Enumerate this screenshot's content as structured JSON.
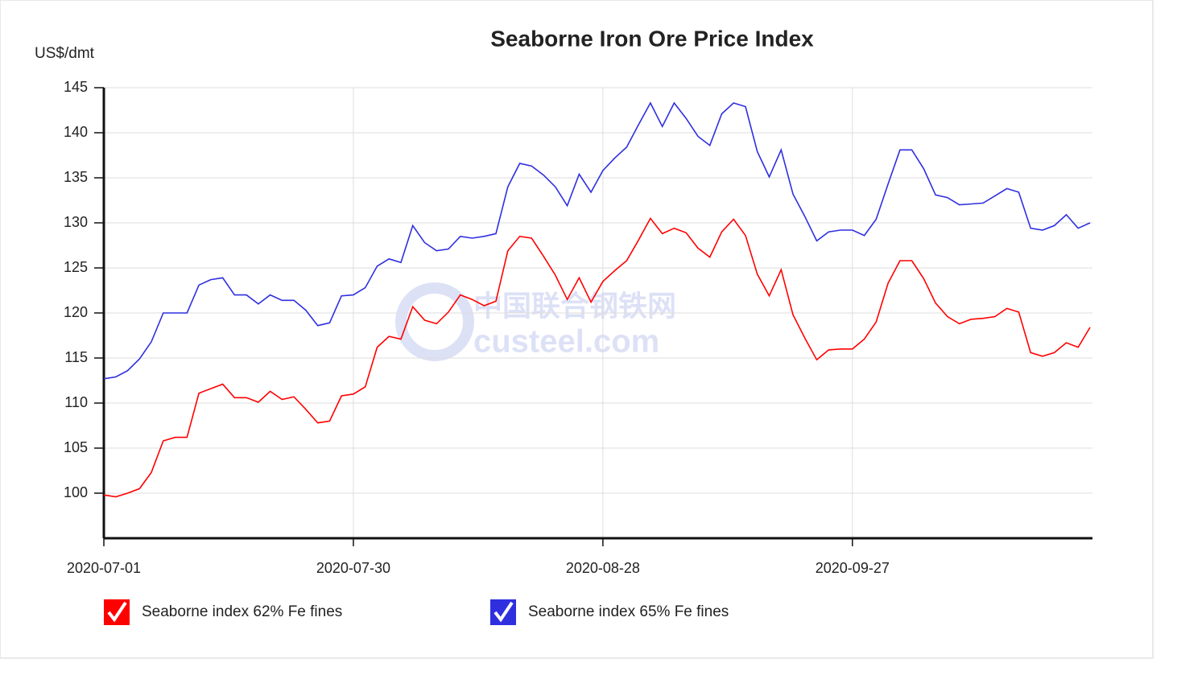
{
  "chart_data": {
    "type": "line",
    "title": "Seaborne Iron Ore Price Index",
    "y_label": "US$/dmt",
    "watermark": [
      "中国联合钢铁网",
      "custeel.com"
    ],
    "categories": [
      "2020-07-01",
      null,
      null,
      null,
      null,
      null,
      null,
      null,
      null,
      null,
      null,
      null,
      null,
      null,
      null,
      null,
      null,
      null,
      null,
      null,
      null,
      "2020-07-30",
      null,
      null,
      null,
      null,
      null,
      null,
      null,
      null,
      null,
      null,
      null,
      null,
      null,
      null,
      null,
      null,
      null,
      null,
      null,
      null,
      "2020-08-28",
      null,
      null,
      null,
      null,
      null,
      null,
      null,
      null,
      null,
      null,
      null,
      null,
      null,
      null,
      null,
      null,
      null,
      null,
      null,
      null,
      "2020-09-27",
      null,
      null,
      null,
      null,
      null,
      null,
      null,
      null,
      null,
      null,
      null,
      null,
      null,
      null,
      null,
      null,
      null,
      null,
      null,
      null
    ],
    "series": [
      {
        "name": "Seaborne index 62% Fe fines",
        "color": "#ff0000",
        "values": [
          99.8,
          99.6,
          100,
          100.5,
          102.3,
          105.8,
          106.2,
          106.2,
          111.1,
          111.6,
          112.1,
          110.6,
          110.6,
          110.1,
          111.3,
          110.4,
          110.7,
          109.3,
          107.8,
          108,
          110.8,
          111,
          111.8,
          116.2,
          117.4,
          117.1,
          120.7,
          119.2,
          118.8,
          120.1,
          122,
          121.5,
          120.8,
          121.3,
          126.9,
          128.5,
          128.3,
          126.3,
          124.2,
          121.5,
          123.9,
          121.2,
          123.5,
          124.7,
          125.8,
          128.1,
          130.5,
          128.8,
          129.4,
          128.9,
          127.2,
          126.2,
          129,
          130.4,
          128.6,
          124.3,
          121.9,
          124.8,
          119.8,
          117.2,
          114.8,
          115.9,
          116,
          116,
          117.1,
          119,
          123.3,
          125.8,
          125.8,
          123.8,
          121.1,
          119.6,
          118.8,
          119.3,
          119.4,
          119.6,
          120.5,
          120.1,
          115.6,
          115.2,
          115.6,
          116.7,
          116.2,
          118.4
        ]
      },
      {
        "name": "Seaborne index 65% Fe fines",
        "color": "#2f2fe0",
        "values": [
          112.7,
          112.9,
          113.6,
          114.9,
          116.8,
          120,
          120,
          120,
          123.1,
          123.7,
          123.9,
          122,
          122,
          121,
          122,
          121.4,
          121.4,
          120.3,
          118.6,
          118.9,
          121.9,
          122,
          122.8,
          125.2,
          126,
          125.6,
          129.7,
          127.8,
          126.9,
          127.1,
          128.5,
          128.3,
          128.5,
          128.8,
          134,
          136.6,
          136.3,
          135.3,
          134,
          131.9,
          135.4,
          133.4,
          135.8,
          137.2,
          138.4,
          140.9,
          143.3,
          140.7,
          143.3,
          141.6,
          139.6,
          138.6,
          142.1,
          143.3,
          142.9,
          137.9,
          135.1,
          138.1,
          133.2,
          130.7,
          128,
          129,
          129.2,
          129.2,
          128.6,
          130.4,
          134.3,
          138.1,
          138.1,
          136,
          133.1,
          132.8,
          132,
          132.1,
          132.2,
          133,
          133.8,
          133.4,
          129.4,
          129.2,
          129.7,
          130.9,
          129.4,
          130
        ]
      }
    ],
    "ylim": [
      95,
      145
    ],
    "yticks": [
      100,
      105,
      110,
      115,
      120,
      125,
      130,
      135,
      140,
      145
    ],
    "grid": true,
    "legend": "bottom"
  }
}
